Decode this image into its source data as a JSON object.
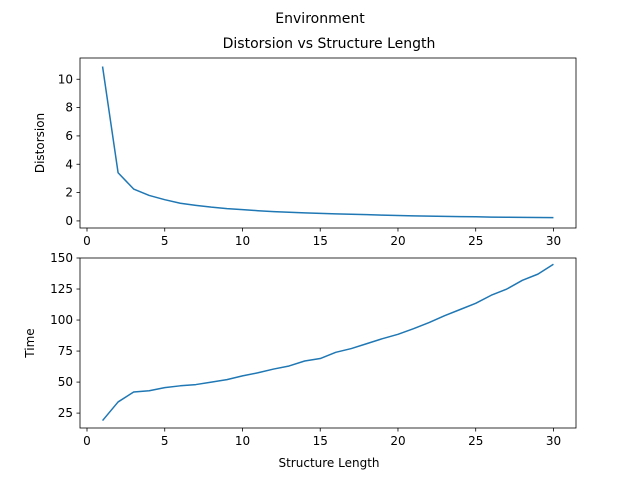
{
  "figure": {
    "suptitle": "Environment"
  },
  "chart_data": [
    {
      "type": "line",
      "title": "Distorsion vs Structure Length",
      "xlabel": "",
      "ylabel": "Distorsion",
      "xlim": [
        -0.45,
        31.45
      ],
      "ylim": [
        -0.5,
        11.5
      ],
      "xticks": [
        0,
        5,
        10,
        15,
        20,
        25,
        30
      ],
      "yticks": [
        0,
        2,
        4,
        6,
        8,
        10
      ],
      "grid": false,
      "color": "#1f77b4",
      "x": [
        1,
        2,
        3,
        4,
        5,
        6,
        7,
        8,
        9,
        10,
        11,
        12,
        13,
        14,
        15,
        16,
        17,
        18,
        19,
        20,
        21,
        22,
        23,
        24,
        25,
        26,
        27,
        28,
        29,
        30
      ],
      "y": [
        10.9,
        3.4,
        2.25,
        1.8,
        1.5,
        1.25,
        1.1,
        0.97,
        0.87,
        0.8,
        0.72,
        0.66,
        0.61,
        0.57,
        0.53,
        0.5,
        0.47,
        0.44,
        0.41,
        0.38,
        0.36,
        0.34,
        0.32,
        0.3,
        0.29,
        0.27,
        0.26,
        0.25,
        0.24,
        0.23
      ]
    },
    {
      "type": "line",
      "title": "",
      "xlabel": "Structure Length",
      "ylabel": "Time",
      "xlim": [
        -0.45,
        31.45
      ],
      "ylim": [
        13,
        150
      ],
      "xticks": [
        0,
        5,
        10,
        15,
        20,
        25,
        30
      ],
      "yticks": [
        25,
        50,
        75,
        100,
        125,
        150
      ],
      "grid": false,
      "color": "#1f77b4",
      "x": [
        1,
        2,
        3,
        4,
        5,
        6,
        7,
        8,
        9,
        10,
        11,
        12,
        13,
        14,
        15,
        16,
        17,
        18,
        19,
        20,
        21,
        22,
        23,
        24,
        25,
        26,
        27,
        28,
        29,
        30
      ],
      "y": [
        19,
        34,
        42,
        43,
        45.5,
        47,
        48,
        50,
        52,
        55,
        57.5,
        60.5,
        63,
        67,
        69,
        74,
        77,
        81,
        85,
        88.5,
        93,
        98,
        103.5,
        108.5,
        113.5,
        120,
        125,
        132,
        137,
        145
      ]
    }
  ]
}
